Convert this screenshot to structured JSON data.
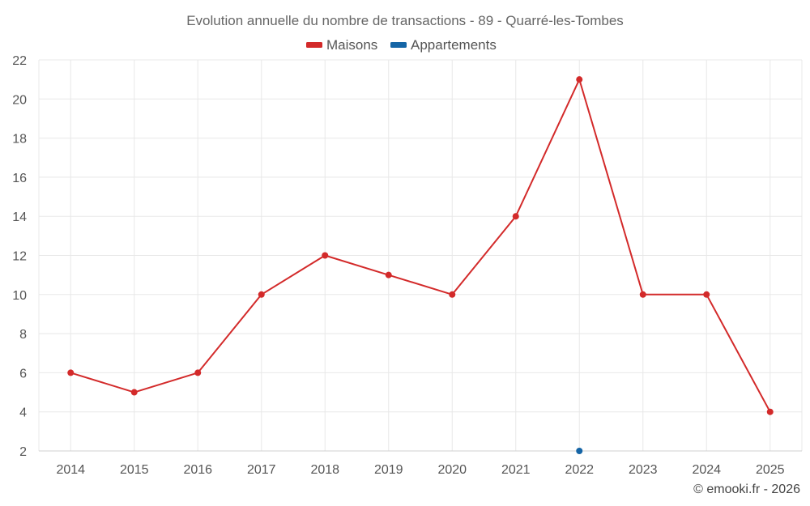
{
  "chart_data": {
    "type": "line",
    "title": "Evolution annuelle du nombre de transactions - 89 - Quarré-les-Tombes",
    "x": [
      "2014",
      "2015",
      "2016",
      "2017",
      "2018",
      "2019",
      "2020",
      "2021",
      "2022",
      "2023",
      "2024",
      "2025"
    ],
    "series": [
      {
        "name": "Maisons",
        "color": "#d32a2a",
        "values": [
          6,
          5,
          6,
          10,
          12,
          11,
          10,
          14,
          21,
          10,
          10,
          4
        ]
      },
      {
        "name": "Appartements",
        "color": "#1565a6",
        "values": [
          null,
          null,
          null,
          null,
          null,
          null,
          null,
          null,
          2,
          null,
          null,
          null
        ]
      }
    ],
    "ylim": [
      2,
      22
    ],
    "yticks": [
      2,
      4,
      6,
      8,
      10,
      12,
      14,
      16,
      18,
      20,
      22
    ],
    "grid": true,
    "legend_position": "top-center"
  },
  "credit": "© emooki.fr - 2026"
}
